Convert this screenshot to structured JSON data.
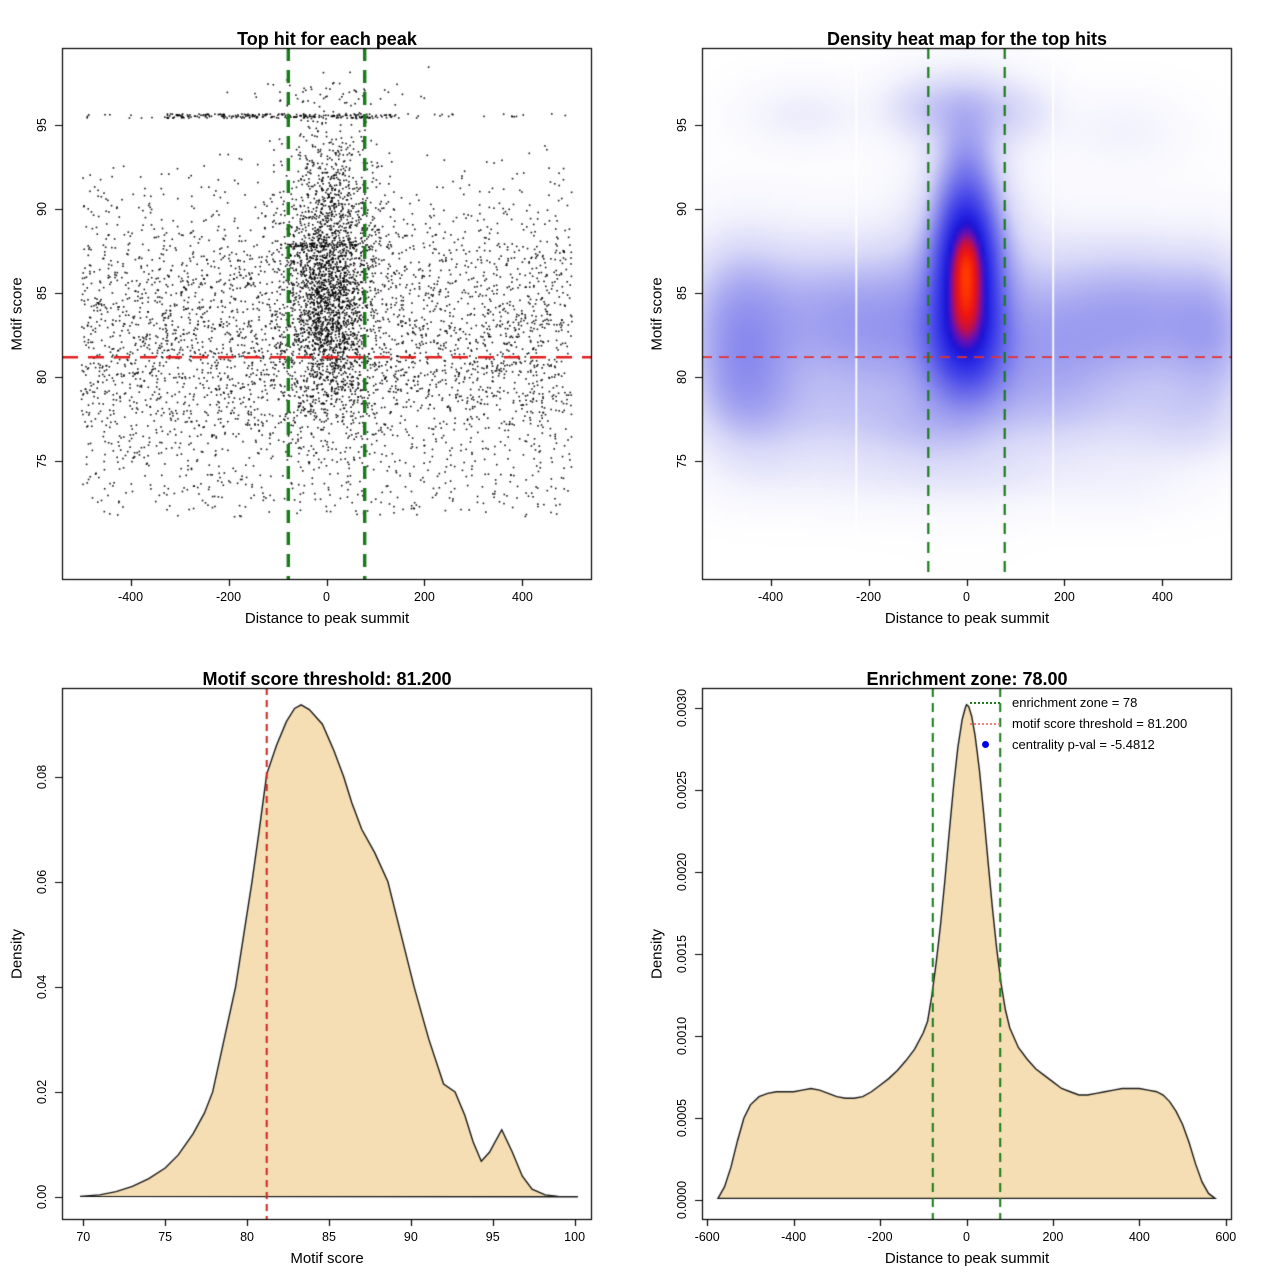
{
  "figure": {
    "background": "#ffffff"
  },
  "chart_data": [
    {
      "type": "scatter",
      "title": "Top hit for each peak",
      "xlabel": "Distance to peak summit",
      "ylabel": "Motif score",
      "xlim": [
        -540,
        540
      ],
      "ylim": [
        68.0,
        99.6
      ],
      "xticks": [
        -400,
        -200,
        0,
        200,
        400
      ],
      "xtick_labels": [
        "-400",
        "-200",
        "0",
        "200",
        "400"
      ],
      "yticks": [
        75,
        80,
        85,
        90,
        95
      ],
      "ytick_labels": [
        "75",
        "80",
        "85",
        "90",
        "95"
      ],
      "grid": false,
      "point_color": "#000000",
      "threshold_line": {
        "y": 81.2,
        "color": "#e32020",
        "dash": [
          16,
          10
        ],
        "width": 2.6
      },
      "enrichment_lines": {
        "x": [
          -78,
          78
        ],
        "color": "#1b7a1b",
        "dash": [
          13,
          9
        ],
        "width": 3.4
      },
      "points_spec": {
        "seed": 20240601,
        "components": [
          {
            "kind": "xu_yg",
            "n": 3900,
            "xr": [
              -501,
              501
            ],
            "ym": 82.2,
            "ys": 4.6,
            "yclip": [
              71.7,
              93.8
            ]
          },
          {
            "kind": "xg_yg",
            "n": 1750,
            "xm": 5,
            "xs": 50,
            "xclip": [
              -200,
              200
            ],
            "ym": 86.3,
            "ys": 4.4,
            "yclip": [
              73.5,
              97.6
            ]
          },
          {
            "kind": "xg_yg",
            "n": 450,
            "xm": 0,
            "xs": 28,
            "xclip": [
              -85,
              85
            ],
            "ym": 83.8,
            "ys": 3.2,
            "yclip": [
              75,
              93
            ]
          },
          {
            "kind": "streak",
            "n": 210,
            "xr": [
              -335,
              140
            ],
            "y": 95.55,
            "jitter": 0.13
          },
          {
            "kind": "streak",
            "n": 55,
            "xr": [
              -500,
              500
            ],
            "y": 95.55,
            "jitter": 0.13
          },
          {
            "kind": "streak",
            "n": 75,
            "xr": [
              -88,
              95
            ],
            "y": 87.85,
            "jitter": 0.12
          },
          {
            "kind": "xu_yu",
            "n": 120,
            "xr": [
              -480,
              495
            ],
            "yr": [
              71.7,
              74.3
            ]
          },
          {
            "kind": "xg_yg",
            "n": 50,
            "xm": 15,
            "xs": 95,
            "xclip": [
              -270,
              270
            ],
            "ym": 96.9,
            "ys": 0.65,
            "yclip": [
              96.1,
              98.5
            ]
          }
        ]
      }
    },
    {
      "type": "heatmap",
      "title": "Density heat map for the top hits",
      "xlabel": "Distance to peak summit",
      "ylabel": "Motif score",
      "xlim": [
        -540,
        540
      ],
      "ylim": [
        68.0,
        99.6
      ],
      "xticks": [
        -400,
        -200,
        0,
        200,
        400
      ],
      "xtick_labels": [
        "-400",
        "-200",
        "0",
        "200",
        "400"
      ],
      "yticks": [
        75,
        80,
        85,
        90,
        95
      ],
      "ytick_labels": [
        "75",
        "80",
        "85",
        "90",
        "95"
      ],
      "threshold_line": {
        "y": 81.2,
        "color": "#e33030",
        "dash": [
          10,
          7
        ],
        "width": 1.8
      },
      "enrichment_lines": {
        "x": [
          -78,
          78
        ],
        "color": "#1b7a1b",
        "dash": [
          11,
          8
        ],
        "width": 2.2
      },
      "white_gaps": [
        -225,
        177
      ],
      "gamma": 0.75,
      "colormap": [
        [
          0.0,
          "#ffffff"
        ],
        [
          0.07,
          "#f3f3fd"
        ],
        [
          0.16,
          "#d7d7f8"
        ],
        [
          0.26,
          "#a8a8f1"
        ],
        [
          0.38,
          "#7979ec"
        ],
        [
          0.52,
          "#4d4de9"
        ],
        [
          0.65,
          "#2d2de5"
        ],
        [
          0.76,
          "#1b13d6"
        ],
        [
          0.84,
          "#6e0fb0"
        ],
        [
          0.9,
          "#c40f45"
        ],
        [
          0.95,
          "#ef1410"
        ],
        [
          1.0,
          "#ff3c00"
        ]
      ],
      "density_components": [
        [
          0,
          87.2,
          38,
          1.7,
          1.0
        ],
        [
          0,
          85.0,
          40,
          2.2,
          0.92
        ],
        [
          0,
          83.0,
          46,
          2.0,
          0.8
        ],
        [
          0,
          89.3,
          36,
          1.6,
          0.55
        ],
        [
          0,
          91.3,
          42,
          1.8,
          0.3
        ],
        [
          0,
          80.6,
          58,
          1.8,
          0.38
        ],
        [
          0,
          85.5,
          80,
          5.0,
          0.42
        ],
        [
          0,
          93.2,
          36,
          1.6,
          0.16
        ],
        [
          0,
          96.0,
          70,
          1.6,
          0.26
        ],
        [
          -110,
          96.1,
          55,
          1.4,
          0.12
        ],
        [
          120,
          95.8,
          55,
          1.4,
          0.11
        ],
        [
          -330,
          95.6,
          85,
          1.3,
          0.1
        ],
        [
          320,
          94.6,
          85,
          1.5,
          0.07
        ],
        [
          -320,
          83.5,
          150,
          3.2,
          0.33
        ],
        [
          -150,
          82.8,
          110,
          3.0,
          0.28
        ],
        [
          -470,
          83.0,
          70,
          3.4,
          0.3
        ],
        [
          -450,
          79.3,
          70,
          2.2,
          0.2
        ],
        [
          230,
          83.5,
          120,
          3.2,
          0.31
        ],
        [
          400,
          83.3,
          100,
          3.0,
          0.3
        ],
        [
          510,
          82.5,
          60,
          3.3,
          0.26
        ],
        [
          160,
          81.0,
          90,
          2.4,
          0.18
        ],
        [
          -300,
          77.4,
          170,
          1.9,
          0.17
        ],
        [
          -80,
          76.8,
          90,
          1.6,
          0.12
        ],
        [
          180,
          77.6,
          140,
          1.9,
          0.15
        ],
        [
          440,
          77.2,
          90,
          1.7,
          0.13
        ],
        [
          -180,
          73.9,
          140,
          1.4,
          0.07
        ],
        [
          90,
          74.1,
          120,
          1.4,
          0.07
        ],
        [
          330,
          73.6,
          90,
          1.3,
          0.05
        ],
        [
          -430,
          74.4,
          80,
          1.4,
          0.05
        ]
      ]
    },
    {
      "type": "area",
      "title": "Motif score threshold: 81.200",
      "xlabel": "Motif score",
      "ylabel": "Density",
      "xlim": [
        68.7,
        101.0
      ],
      "ylim": [
        -0.0042,
        0.0969
      ],
      "xticks": [
        70,
        75,
        80,
        85,
        90,
        95,
        100
      ],
      "xtick_labels": [
        "70",
        "75",
        "80",
        "85",
        "90",
        "95",
        "100"
      ],
      "yticks": [
        0.0,
        0.02,
        0.04,
        0.06,
        0.08
      ],
      "ytick_labels": [
        "0.00",
        "0.02",
        "0.04",
        "0.06",
        "0.08"
      ],
      "fill_color": "#f5deb3",
      "line_color": "#1a1a1a",
      "threshold_line": {
        "x": 81.2,
        "color": "#cd2626",
        "dash": [
          7,
          5
        ],
        "width": 2
      },
      "curve": [
        [
          69.8,
          0.0001
        ],
        [
          71,
          0.0004
        ],
        [
          72,
          0.001
        ],
        [
          73,
          0.002
        ],
        [
          74,
          0.0035
        ],
        [
          75,
          0.0055
        ],
        [
          75.8,
          0.008
        ],
        [
          76.7,
          0.012
        ],
        [
          77.4,
          0.016
        ],
        [
          77.9,
          0.02
        ],
        [
          78.6,
          0.03
        ],
        [
          79.3,
          0.04
        ],
        [
          79.8,
          0.05
        ],
        [
          80.3,
          0.06
        ],
        [
          80.75,
          0.07
        ],
        [
          81.2,
          0.0805
        ],
        [
          81.8,
          0.086
        ],
        [
          82.4,
          0.0905
        ],
        [
          82.9,
          0.093
        ],
        [
          83.3,
          0.0937
        ],
        [
          83.8,
          0.0928
        ],
        [
          84.6,
          0.09
        ],
        [
          85.3,
          0.085
        ],
        [
          85.9,
          0.08
        ],
        [
          86.4,
          0.075
        ],
        [
          87,
          0.07
        ],
        [
          87.8,
          0.0655
        ],
        [
          88.6,
          0.06
        ],
        [
          89.4,
          0.05
        ],
        [
          90.2,
          0.04
        ],
        [
          91.1,
          0.03
        ],
        [
          92,
          0.0215
        ],
        [
          92.7,
          0.02
        ],
        [
          93.3,
          0.0155
        ],
        [
          93.8,
          0.0105
        ],
        [
          94.3,
          0.0068
        ],
        [
          94.8,
          0.0085
        ],
        [
          95.55,
          0.0128
        ],
        [
          96.2,
          0.0085
        ],
        [
          96.8,
          0.004
        ],
        [
          97.4,
          0.0015
        ],
        [
          98.2,
          0.0004
        ],
        [
          99,
          0.0001
        ],
        [
          100.2,
          3e-05
        ]
      ]
    },
    {
      "type": "area",
      "title": "Enrichment zone: 78.00",
      "xlabel": "Distance to peak summit",
      "ylabel": "Density",
      "xlim": [
        -612,
        612
      ],
      "ylim": [
        -0.000116,
        0.003122
      ],
      "xticks": [
        -600,
        -400,
        -200,
        0,
        200,
        400,
        600
      ],
      "xtick_labels": [
        "-600",
        "-400",
        "-200",
        "0",
        "200",
        "400",
        "600"
      ],
      "yticks": [
        0.0,
        0.0005,
        0.001,
        0.0015,
        0.002,
        0.0025,
        0.003
      ],
      "ytick_labels": [
        "0.0000",
        "0.0005",
        "0.0010",
        "0.0015",
        "0.0020",
        "0.0025",
        "0.0030"
      ],
      "fill_color": "#f5deb3",
      "line_color": "#1a1a1a",
      "enrichment_lines": {
        "x": [
          -78,
          78
        ],
        "color": "#1b7a1b",
        "dash": [
          9,
          6
        ],
        "width": 2
      },
      "legend": {
        "items": [
          {
            "label": "enrichment zone = 78",
            "marker": "dotted-line",
            "color": "#1e7d1e"
          },
          {
            "label": "motif score threshold = 81.200",
            "marker": "dotted-line",
            "color": "#f08080"
          },
          {
            "label": "centrality p-val = -5.4812",
            "marker": "dot",
            "color": "#0000e8"
          }
        ]
      },
      "curve": [
        [
          -575,
          1e-05
        ],
        [
          -560,
          8e-05
        ],
        [
          -545,
          0.0002
        ],
        [
          -530,
          0.00036
        ],
        [
          -515,
          0.0005
        ],
        [
          -500,
          0.00058
        ],
        [
          -480,
          0.00063
        ],
        [
          -460,
          0.00065
        ],
        [
          -440,
          0.00066
        ],
        [
          -420,
          0.00066
        ],
        [
          -400,
          0.00066
        ],
        [
          -380,
          0.00067
        ],
        [
          -360,
          0.00068
        ],
        [
          -340,
          0.00067
        ],
        [
          -320,
          0.00065
        ],
        [
          -300,
          0.00063
        ],
        [
          -280,
          0.00062
        ],
        [
          -260,
          0.00062
        ],
        [
          -240,
          0.00063
        ],
        [
          -220,
          0.00066
        ],
        [
          -200,
          0.0007
        ],
        [
          -180,
          0.00074
        ],
        [
          -160,
          0.00079
        ],
        [
          -140,
          0.00085
        ],
        [
          -120,
          0.00092
        ],
        [
          -100,
          0.00102
        ],
        [
          -90,
          0.00109
        ],
        [
          -80,
          0.00125
        ],
        [
          -70,
          0.00145
        ],
        [
          -60,
          0.00168
        ],
        [
          -50,
          0.00195
        ],
        [
          -40,
          0.00224
        ],
        [
          -30,
          0.00252
        ],
        [
          -20,
          0.00276
        ],
        [
          -10,
          0.00293
        ],
        [
          -3,
          0.003
        ],
        [
          0,
          0.00302
        ],
        [
          5,
          0.00301
        ],
        [
          12,
          0.00295
        ],
        [
          20,
          0.00283
        ],
        [
          30,
          0.00262
        ],
        [
          40,
          0.00235
        ],
        [
          50,
          0.00206
        ],
        [
          60,
          0.00178
        ],
        [
          70,
          0.00153
        ],
        [
          80,
          0.00132
        ],
        [
          90,
          0.00116
        ],
        [
          100,
          0.00105
        ],
        [
          120,
          0.00093
        ],
        [
          140,
          0.00086
        ],
        [
          160,
          0.0008
        ],
        [
          180,
          0.00076
        ],
        [
          200,
          0.00072
        ],
        [
          220,
          0.00068
        ],
        [
          240,
          0.00066
        ],
        [
          260,
          0.00064
        ],
        [
          280,
          0.00064
        ],
        [
          300,
          0.00065
        ],
        [
          320,
          0.00066
        ],
        [
          340,
          0.00067
        ],
        [
          360,
          0.00068
        ],
        [
          380,
          0.00068
        ],
        [
          400,
          0.00068
        ],
        [
          420,
          0.00067
        ],
        [
          440,
          0.00066
        ],
        [
          455,
          0.00064
        ],
        [
          470,
          0.0006
        ],
        [
          485,
          0.00054
        ],
        [
          500,
          0.00046
        ],
        [
          515,
          0.00035
        ],
        [
          530,
          0.00022
        ],
        [
          545,
          0.00011
        ],
        [
          560,
          4e-05
        ],
        [
          575,
          1e-05
        ]
      ]
    }
  ]
}
